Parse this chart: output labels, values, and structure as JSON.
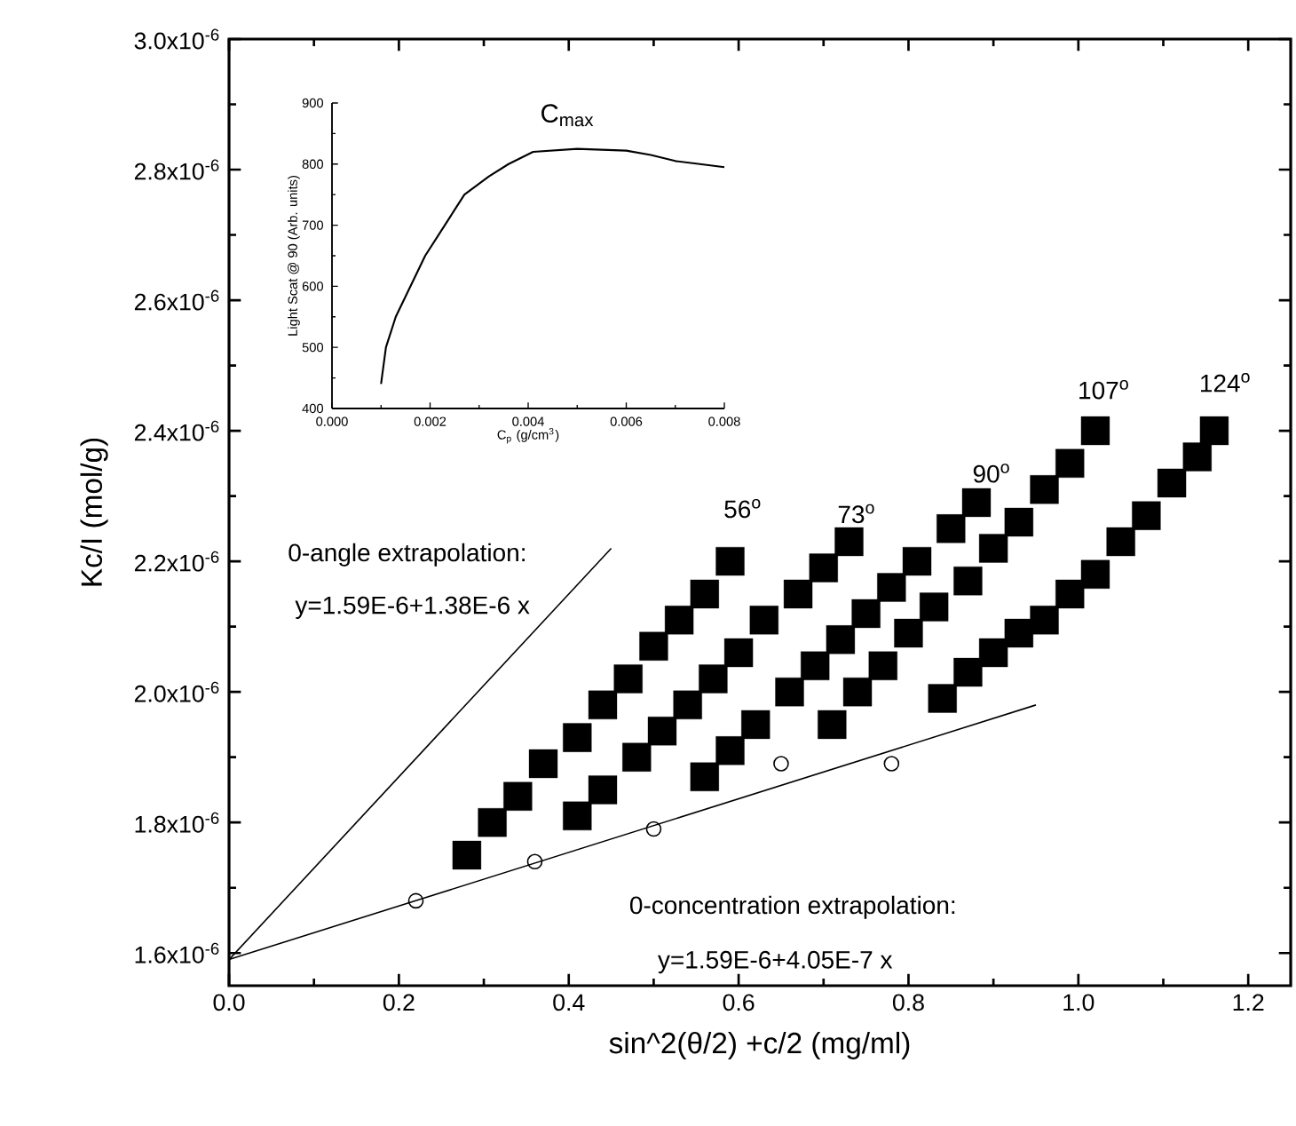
{
  "chart_data": [
    {
      "type": "scatter",
      "xlabel": "sin^2(θ/2) +c/2 (mg/ml)",
      "ylabel": "Kc/I (mol/g)",
      "xlim": [
        0,
        1.25
      ],
      "ylim": [
        1.55e-06,
        3e-06
      ],
      "xticks": [
        {
          "value": 0,
          "label": "0.0"
        },
        {
          "value": 0.2,
          "label": "0.2"
        },
        {
          "value": 0.4,
          "label": "0.4"
        },
        {
          "value": 0.6,
          "label": "0.6"
        },
        {
          "value": 0.8,
          "label": "0.8"
        },
        {
          "value": 1.0,
          "label": "1.0"
        },
        {
          "value": 1.2,
          "label": "1.2"
        }
      ],
      "yticks": [
        {
          "value": 1.6e-06,
          "label": "1.6x10$^{-6}$"
        },
        {
          "value": 1.8e-06,
          "label": "1.8x10$^{-6}$"
        },
        {
          "value": 2e-06,
          "label": "2.0x10$^{-6}$"
        },
        {
          "value": 2.2e-06,
          "label": "2.2x10$^{-6}$"
        },
        {
          "value": 2.4e-06,
          "label": "2.4x10$^{-6}$"
        },
        {
          "value": 2.6e-06,
          "label": "2.6x10$^{-6}$"
        },
        {
          "value": 2.8e-06,
          "label": "2.8x10$^{-6}$"
        },
        {
          "value": 3e-06,
          "label": "3.0x10$^{-6}$"
        }
      ],
      "grid": false,
      "series": [
        {
          "type": "line",
          "marker": "none",
          "color": "#000000",
          "x": [
            0,
            0.45
          ],
          "values": [
            1.59e-06,
            2.22e-06
          ]
        },
        {
          "type": "line",
          "marker": "none",
          "color": "#000000",
          "x": [
            0,
            0.95
          ],
          "values": [
            1.59e-06,
            1.98e-06
          ]
        },
        {
          "type": "scatter",
          "marker": "circle",
          "color": "#000000",
          "x": [
            0.22,
            0.36,
            0.5,
            0.65,
            0.78
          ],
          "values": [
            1.68e-06,
            1.74e-06,
            1.79e-06,
            1.89e-06,
            1.89e-06
          ]
        },
        {
          "type": "scatter",
          "marker": "square",
          "color": "#000000",
          "x": [
            0.28,
            0.31,
            0.34,
            0.37,
            0.41,
            0.44,
            0.47,
            0.5,
            0.53,
            0.56,
            0.59
          ],
          "values": [
            1.75e-06,
            1.8e-06,
            1.84e-06,
            1.89e-06,
            1.93e-06,
            1.98e-06,
            2.02e-06,
            2.07e-06,
            2.11e-06,
            2.15e-06,
            2.2e-06
          ]
        },
        {
          "type": "scatter",
          "marker": "square",
          "color": "#000000",
          "x": [
            0.41,
            0.44,
            0.48,
            0.51,
            0.54,
            0.57,
            0.6,
            0.63,
            0.67,
            0.7,
            0.73
          ],
          "values": [
            1.81e-06,
            1.85e-06,
            1.9e-06,
            1.94e-06,
            1.98e-06,
            2.02e-06,
            2.06e-06,
            2.11e-06,
            2.15e-06,
            2.19e-06,
            2.23e-06
          ]
        },
        {
          "type": "scatter",
          "marker": "square",
          "color": "#000000",
          "x": [
            0.56,
            0.59,
            0.62,
            0.66,
            0.69,
            0.72,
            0.75,
            0.78,
            0.81,
            0.85,
            0.88
          ],
          "values": [
            1.87e-06,
            1.91e-06,
            1.95e-06,
            2e-06,
            2.04e-06,
            2.08e-06,
            2.12e-06,
            2.16e-06,
            2.2e-06,
            2.25e-06,
            2.29e-06
          ]
        },
        {
          "type": "scatter",
          "marker": "square",
          "color": "#000000",
          "x": [
            0.71,
            0.74,
            0.77,
            0.8,
            0.83,
            0.87,
            0.9,
            0.93,
            0.96,
            0.99,
            1.02
          ],
          "values": [
            1.95e-06,
            2e-06,
            2.04e-06,
            2.09e-06,
            2.13e-06,
            2.17e-06,
            2.22e-06,
            2.26e-06,
            2.31e-06,
            2.35e-06,
            2.4e-06
          ]
        },
        {
          "type": "scatter",
          "marker": "square",
          "color": "#000000",
          "x": [
            0.84,
            0.87,
            0.9,
            0.93,
            0.96,
            0.99,
            1.02,
            1.05,
            1.08,
            1.11,
            1.14,
            1.16
          ],
          "values": [
            1.99e-06,
            2.03e-06,
            2.06e-06,
            2.09e-06,
            2.11e-06,
            2.15e-06,
            2.18e-06,
            2.23e-06,
            2.27e-06,
            2.32e-06,
            2.36e-06,
            2.4e-06
          ]
        }
      ],
      "annotations": [
        "0-angle extrapolation:",
        "y=1.59E-6+1.38E-6 x",
        "0-concentration extrapolation:",
        "y=1.59E-6+4.05E-7 x",
        "56$^{o}$",
        "73$^{o}$",
        "90$^{o}$",
        "107$^{o}$",
        "124$^{o}$"
      ]
    },
    {
      "type": "line",
      "xlabel": "C$_{p}$ (g/cm$^{3}$)",
      "ylabel": "Light Scat @ 90 (Arb. units)",
      "xlim": [
        0,
        0.008
      ],
      "ylim": [
        400,
        900
      ],
      "xticks": [
        {
          "value": 0,
          "label": "0.000"
        },
        {
          "value": 0.002,
          "label": "0.002"
        },
        {
          "value": 0.004,
          "label": "0.004"
        },
        {
          "value": 0.006,
          "label": "0.006"
        },
        {
          "value": 0.008,
          "label": "0.008"
        }
      ],
      "yticks": [
        400,
        500,
        600,
        700,
        800,
        900
      ],
      "grid": false,
      "marker": "none",
      "series": [
        {
          "color": "#000000",
          "x": [
            0.001,
            0.0011,
            0.0013,
            0.0016,
            0.0019,
            0.0023,
            0.0027,
            0.0032,
            0.0036,
            0.0041,
            0.005,
            0.006,
            0.0065,
            0.007,
            0.0075,
            0.008
          ],
          "values": [
            440,
            500,
            550,
            600,
            650,
            700,
            750,
            780,
            800,
            820,
            825,
            822,
            815,
            805,
            800,
            795
          ]
        }
      ],
      "annotations": [
        "C$_{max}$"
      ]
    }
  ]
}
